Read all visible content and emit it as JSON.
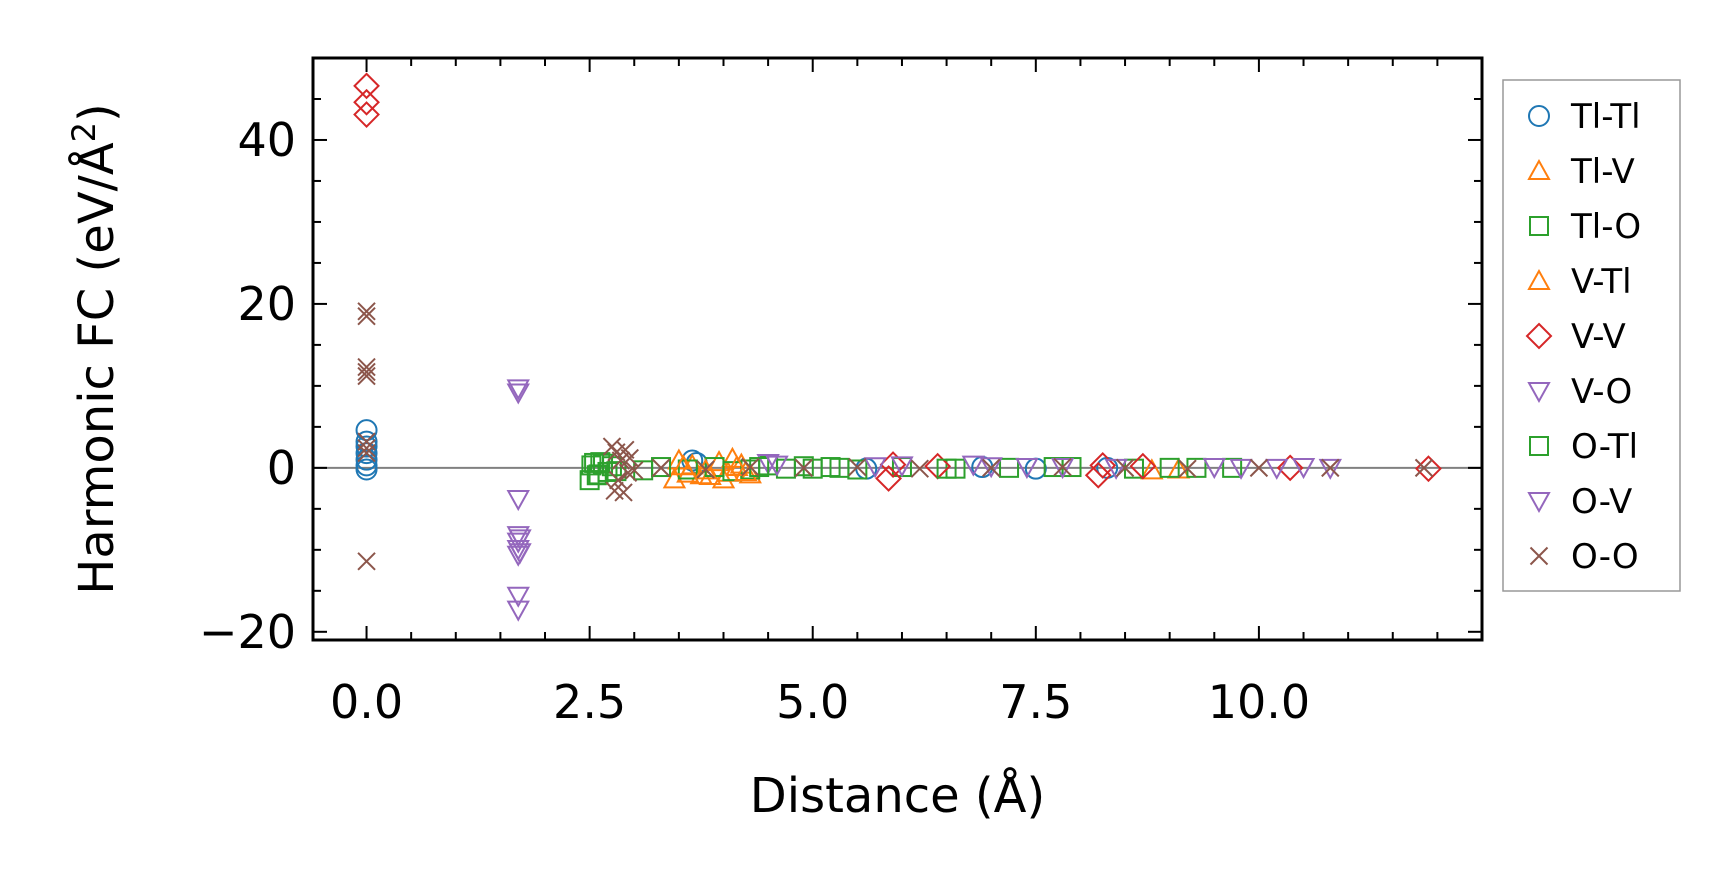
{
  "chart_data": {
    "type": "scatter",
    "title": "",
    "xlabel": "Distance (Å)",
    "ylabel_main": "Harmonic FC (eV/Å",
    "ylabel_sup": "2",
    "ylabel_close": ")",
    "xlim": [
      -0.6,
      12.5
    ],
    "ylim": [
      -21,
      50
    ],
    "xticks": [
      0.0,
      2.5,
      5.0,
      7.5,
      10.0
    ],
    "xtick_labels": [
      "0.0",
      "2.5",
      "5.0",
      "7.5",
      "10.0"
    ],
    "yticks": [
      -20,
      0,
      20,
      40
    ],
    "ytick_labels": [
      "−20",
      "0",
      "20",
      "40"
    ],
    "zero_line": 0,
    "legend_position": "outside-right",
    "series": [
      {
        "name": "Tl-Tl",
        "marker": "circle",
        "color": "#1f77b4",
        "x": [
          0,
          0,
          0,
          0,
          0,
          0,
          0,
          3.65,
          3.7,
          5.6,
          6.9,
          7.5,
          8.3
        ],
        "y": [
          4.6,
          3.2,
          2.6,
          1.8,
          1.0,
          0.3,
          -0.2,
          0.9,
          0.6,
          -0.1,
          0.1,
          -0.1,
          0.0
        ]
      },
      {
        "name": "Tl-V",
        "marker": "triangle-up",
        "color": "#ff7f0e",
        "x": [
          3.45,
          3.5,
          3.6,
          3.65,
          3.75,
          3.85,
          3.95,
          4.0,
          4.05,
          4.1,
          4.2,
          4.3,
          8.8,
          9.1
        ],
        "y": [
          -1.4,
          0.9,
          -0.7,
          0.3,
          -0.9,
          -1.0,
          0.7,
          -1.4,
          -0.6,
          1.1,
          0.4,
          -0.8,
          -0.3,
          -0.2
        ]
      },
      {
        "name": "Tl-O",
        "marker": "square",
        "color": "#2ca02c",
        "x": [
          2.5,
          2.55,
          2.6,
          2.65,
          2.7,
          2.75,
          2.8,
          3.1,
          3.3,
          3.6,
          3.9,
          4.1,
          4.3,
          4.5,
          4.7,
          4.9,
          5.0,
          5.2,
          5.5,
          6.0,
          6.6,
          7.2,
          7.9,
          8.6,
          9.3,
          9.7
        ],
        "y": [
          -1.5,
          0.6,
          -0.8,
          0.5,
          -0.5,
          0.2,
          -0.4,
          -0.3,
          0.1,
          -0.2,
          0.1,
          -0.4,
          -0.2,
          0.3,
          -0.1,
          0.2,
          -0.1,
          0.1,
          -0.2,
          0.1,
          -0.1,
          0.0,
          0.1,
          -0.1,
          0.0,
          0.0
        ]
      },
      {
        "name": "V-Tl",
        "marker": "triangle-up",
        "color": "#ff7f0e",
        "x": [
          3.55,
          3.8,
          4.15,
          4.25
        ],
        "y": [
          0.2,
          -0.3,
          0.1,
          -0.5
        ]
      },
      {
        "name": "V-V",
        "marker": "diamond",
        "color": "#d62728",
        "x": [
          0,
          0,
          0,
          5.85,
          5.9,
          6.4,
          8.2,
          8.25,
          8.7,
          10.35,
          11.9
        ],
        "y": [
          46.6,
          44.6,
          43.1,
          -1.3,
          0.4,
          0.2,
          -0.9,
          0.3,
          0.2,
          0.0,
          -0.1
        ]
      },
      {
        "name": "V-O",
        "marker": "triangle-down",
        "color": "#9467bd",
        "x": [
          1.7,
          1.7,
          1.7,
          1.7,
          1.7,
          1.7,
          1.7,
          1.7,
          1.7,
          4.5,
          5.7,
          6.8,
          7.4,
          8.4,
          9.5,
          10.2
        ],
        "y": [
          9.7,
          9.2,
          -3.8,
          -8.2,
          -9.0,
          -9.9,
          -10.6,
          -15.6,
          -17.3,
          0.6,
          0.2,
          0.4,
          0.1,
          0.0,
          0.1,
          0.0
        ]
      },
      {
        "name": "O-Tl",
        "marker": "square",
        "color": "#2ca02c",
        "x": [
          2.52,
          2.58,
          2.62,
          4.4,
          5.3,
          6.5,
          7.7,
          9.0
        ],
        "y": [
          0.3,
          -0.9,
          0.7,
          0.1,
          0.0,
          -0.1,
          0.1,
          0.0
        ]
      },
      {
        "name": "O-V",
        "marker": "triangle-down",
        "color": "#9467bd",
        "x": [
          1.72,
          1.72,
          4.6,
          6.0,
          7.0,
          7.8,
          9.8,
          10.5,
          10.8
        ],
        "y": [
          -8.6,
          -10.3,
          0.4,
          0.3,
          0.2,
          0.1,
          0.0,
          0.1,
          0.0
        ]
      },
      {
        "name": "O-O",
        "marker": "x",
        "color": "#8c564b",
        "x": [
          0,
          0,
          0,
          0,
          0,
          0,
          0,
          0,
          0,
          2.75,
          2.78,
          2.8,
          2.82,
          2.85,
          2.88,
          2.9,
          2.93,
          2.95,
          3.0,
          3.3,
          3.8,
          4.3,
          4.9,
          5.5,
          6.2,
          7.0,
          7.8,
          8.5,
          9.2,
          10.0,
          10.8,
          11.85
        ],
        "y": [
          19.1,
          18.5,
          12.3,
          11.7,
          11.2,
          3.2,
          2.4,
          1.8,
          -11.4,
          2.6,
          -2.8,
          1.9,
          -1.5,
          0.9,
          -3.0,
          2.2,
          -0.6,
          1.2,
          -0.3,
          0.0,
          -0.2,
          0.1,
          0.0,
          0.1,
          -0.1,
          0.0,
          0.1,
          0.0,
          -0.1,
          0.0,
          0.0,
          0.0
        ]
      }
    ]
  }
}
